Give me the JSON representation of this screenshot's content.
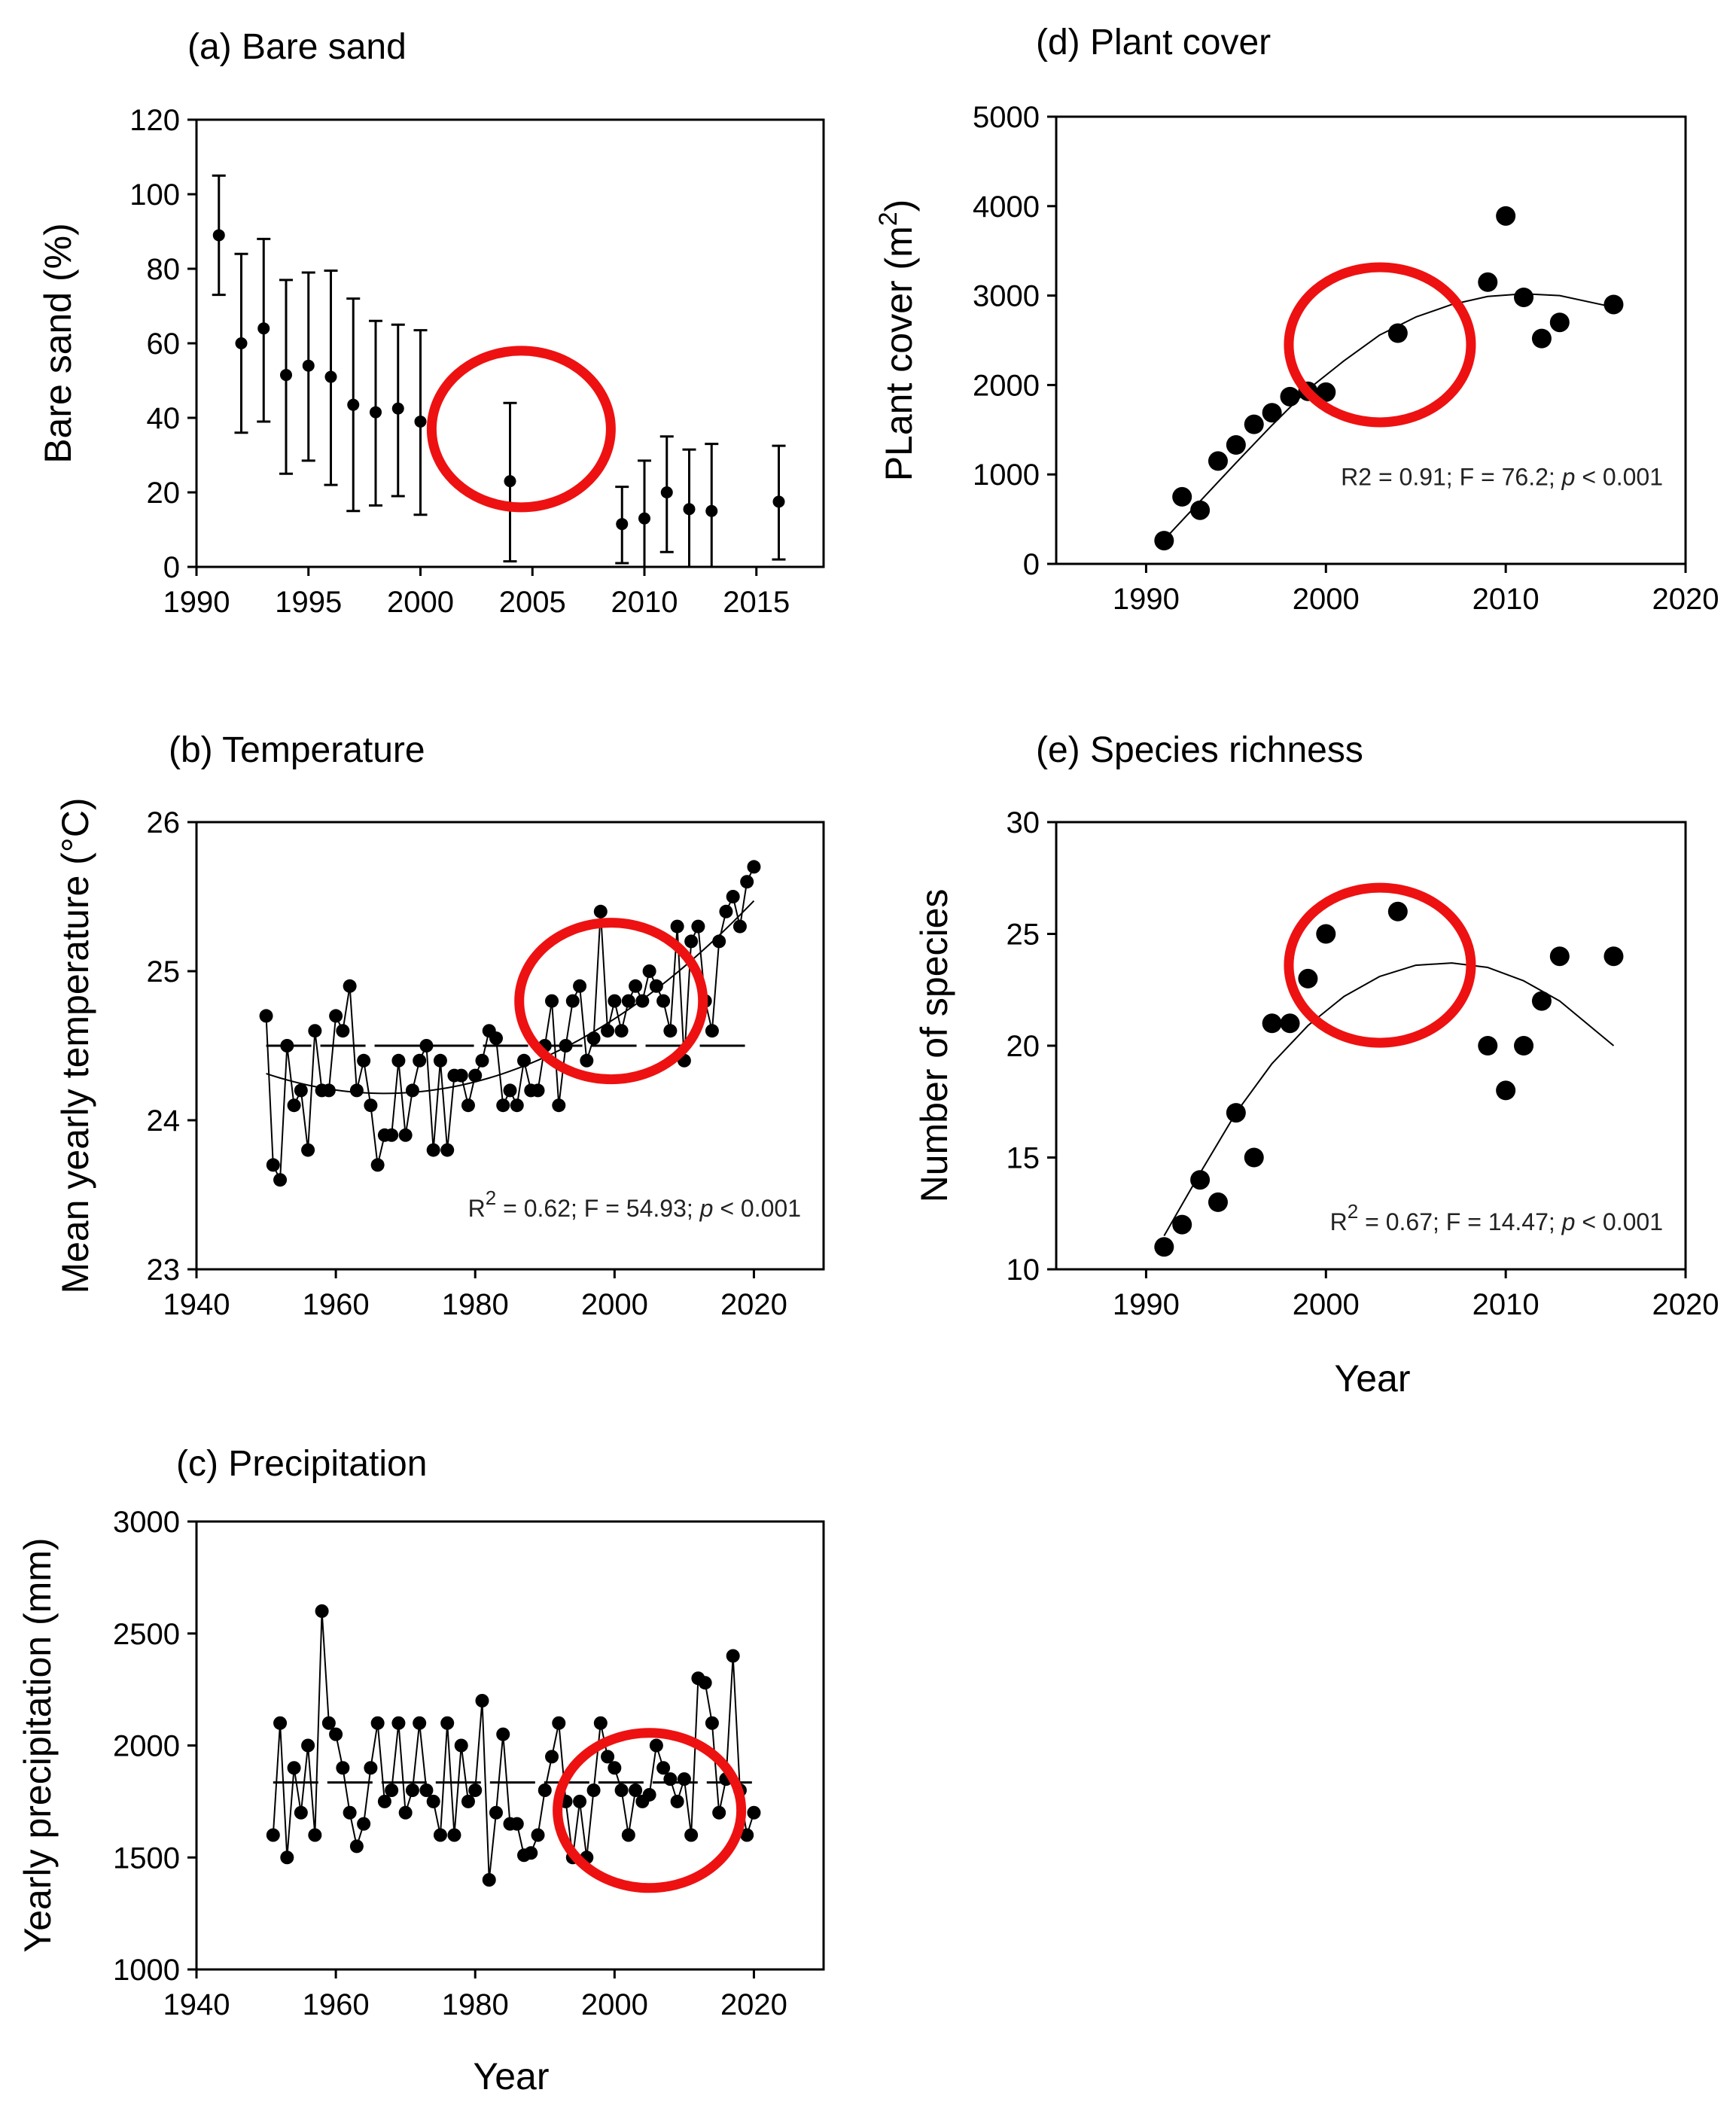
{
  "chart_data": [
    {
      "id": "a",
      "type": "scatter",
      "title": "(a) Bare sand",
      "xlabel": "",
      "ylabel": "Bare sand (%)",
      "xlim": [
        1990,
        2018
      ],
      "ylim": [
        0,
        120
      ],
      "xticks": [
        "1990",
        "1995",
        "2000",
        "2005",
        "2010",
        "2015"
      ],
      "yticks": [
        "0",
        "20",
        "40",
        "60",
        "80",
        "100",
        "120"
      ],
      "x": [
        1991,
        1992,
        1993,
        1994,
        1995,
        1996,
        1997,
        1998,
        1999,
        2000,
        2004,
        2009,
        2010,
        2011,
        2012,
        2013,
        2016
      ],
      "y": [
        89,
        60,
        64,
        51.5,
        54,
        51,
        43.5,
        41.5,
        42.5,
        39,
        23,
        11.5,
        13,
        20,
        15.5,
        15,
        17.5
      ],
      "err_low": [
        73,
        36,
        39,
        25,
        28.5,
        22,
        15,
        16.5,
        19,
        14,
        1.5,
        1,
        0,
        4,
        0,
        0,
        2
      ],
      "err_high": [
        105,
        84,
        88,
        77,
        79,
        79.5,
        72,
        66,
        65,
        63.5,
        44,
        21.5,
        28.5,
        35,
        31.5,
        33,
        32.5
      ],
      "error_bars": true,
      "highlight": {
        "x": 2004.5,
        "y": 37
      }
    },
    {
      "id": "b",
      "type": "line",
      "title": "(b) Temperature",
      "xlabel": "",
      "ylabel": "Mean yearly temperature (°C)",
      "xlim": [
        1940,
        2030
      ],
      "ylim": [
        23,
        26
      ],
      "xticks": [
        "1940",
        "1960",
        "1980",
        "2000",
        "2020"
      ],
      "yticks": [
        "23",
        "24",
        "25",
        "26"
      ],
      "x_start": 1950,
      "y": [
        24.7,
        23.7,
        23.6,
        24.5,
        24.1,
        24.2,
        23.8,
        24.6,
        24.2,
        24.2,
        24.7,
        24.6,
        24.9,
        24.2,
        24.4,
        24.1,
        23.7,
        23.9,
        23.9,
        24.4,
        23.9,
        24.2,
        24.4,
        24.5,
        23.8,
        24.4,
        23.8,
        24.3,
        24.3,
        24.1,
        24.3,
        24.4,
        24.6,
        24.55,
        24.1,
        24.2,
        24.1,
        24.4,
        24.2,
        24.2,
        24.5,
        24.8,
        24.1,
        24.5,
        24.8,
        24.9,
        24.4,
        24.55,
        25.4,
        24.6,
        24.8,
        24.6,
        24.8,
        24.9,
        24.8,
        25.0,
        24.9,
        24.8,
        24.6,
        25.3,
        24.4,
        25.2,
        25.3,
        24.8,
        24.6,
        25.2,
        25.4,
        25.5,
        25.3,
        25.6,
        25.7
      ],
      "mean_line": 24.5,
      "trend": {
        "type": "quadratic",
        "vertex_x": 1967,
        "vertex_y": 24.18,
        "a": 0.00046,
        "x_range": [
          1950,
          2020
        ]
      },
      "annotation": {
        "r": "R",
        "sup": "2",
        "mid": " = 0.62; F = 54.93; ",
        "p": "p",
        "tail": " < 0.001"
      },
      "highlight": {
        "x": 1999.5,
        "y": 24.8
      }
    },
    {
      "id": "c",
      "type": "line",
      "title": "(c) Precipitation",
      "xlabel": "Year",
      "ylabel": "Yearly precipitation (mm)",
      "xlim": [
        1940,
        2030
      ],
      "ylim": [
        1000,
        3000
      ],
      "xticks": [
        "1940",
        "1960",
        "1980",
        "2000",
        "2020"
      ],
      "yticks": [
        "1000",
        "1500",
        "2000",
        "2500",
        "3000"
      ],
      "x_start": 1951,
      "y": [
        1600,
        2100,
        1500,
        1900,
        1700,
        2000,
        1600,
        2600,
        2100,
        2050,
        1900,
        1700,
        1550,
        1650,
        1900,
        2100,
        1750,
        1800,
        2100,
        1700,
        1800,
        2100,
        1800,
        1750,
        1600,
        2100,
        1600,
        2000,
        1750,
        1800,
        2200,
        1400,
        1700,
        2050,
        1650,
        1650,
        1510,
        1520,
        1600,
        1800,
        1950,
        2100,
        1750,
        1500,
        1750,
        1500,
        1800,
        2100,
        1950,
        1900,
        1800,
        1600,
        1800,
        1750,
        1780,
        2000,
        1900,
        1850,
        1750,
        1850,
        1600,
        2300,
        2280,
        2100,
        1700,
        1850,
        2400,
        1800,
        1600,
        1700
      ],
      "mean_line": 1835,
      "highlight": {
        "x": 2005,
        "y": 1710
      }
    },
    {
      "id": "d",
      "type": "scatter",
      "title": "(d) Plant cover",
      "xlabel": "",
      "ylabel": {
        "main": "PLant cover (m",
        "sup": "2",
        "close": ")"
      },
      "xlim": [
        1985,
        2020
      ],
      "ylim": [
        0,
        5000
      ],
      "xticks": [
        "1990",
        "2000",
        "2010",
        "2020"
      ],
      "yticks": [
        "0",
        "1000",
        "2000",
        "3000",
        "4000",
        "5000"
      ],
      "x": [
        1991,
        1992,
        1993,
        1994,
        1995,
        1996,
        1997,
        1998,
        1999,
        2000,
        2004,
        2009,
        2010,
        2011,
        2012,
        2013,
        2016
      ],
      "y": [
        260,
        750,
        600,
        1150,
        1330,
        1560,
        1690,
        1870,
        1930,
        1920,
        2580,
        3150,
        3890,
        2980,
        2520,
        2700,
        2900
      ],
      "fit_x": [
        1991,
        1993,
        1995,
        1997,
        1999,
        2001,
        2003,
        2005,
        2007,
        2009,
        2011,
        2013,
        2016
      ],
      "fit_y": [
        270,
        700,
        1130,
        1550,
        1950,
        2270,
        2560,
        2760,
        2900,
        2990,
        3020,
        3000,
        2870
      ],
      "annotation": {
        "mid": "R2 = 0.91; F = 76.2; ",
        "p": "p",
        "tail": " < 0.001"
      },
      "highlight": {
        "x": 2003,
        "y": 2450
      }
    },
    {
      "id": "e",
      "type": "scatter",
      "title": "(e) Species richness",
      "xlabel": "Year",
      "ylabel": "Number of species",
      "xlim": [
        1985,
        2020
      ],
      "ylim": [
        10,
        30
      ],
      "xticks": [
        "1990",
        "2000",
        "2010",
        "2020"
      ],
      "yticks": [
        "10",
        "15",
        "20",
        "25",
        "30"
      ],
      "x": [
        1991,
        1992,
        1993,
        1994,
        1995,
        1996,
        1997,
        1998,
        1999,
        2000,
        2004,
        2009,
        2010,
        2011,
        2012,
        2013,
        2016
      ],
      "y": [
        11,
        12,
        14,
        13,
        17,
        15,
        21,
        21,
        23,
        25,
        26,
        20,
        18,
        20,
        22,
        24,
        24
      ],
      "fit_x": [
        1991,
        1993,
        1995,
        1997,
        1999,
        2001,
        2003,
        2005,
        2007,
        2009,
        2011,
        2013,
        2016
      ],
      "fit_y": [
        11.5,
        14.3,
        17,
        19.2,
        20.9,
        22.2,
        23.1,
        23.6,
        23.7,
        23.5,
        22.9,
        22,
        20
      ],
      "annotation": {
        "r": "R",
        "sup": "2",
        "mid": " = 0.67; F = 14.47; ",
        "p": "p",
        "tail": " < 0.001"
      },
      "highlight": {
        "x": 2003,
        "y": 23.6
      }
    }
  ],
  "colors": {
    "marker": "#000000",
    "highlight": "#ee1111"
  }
}
